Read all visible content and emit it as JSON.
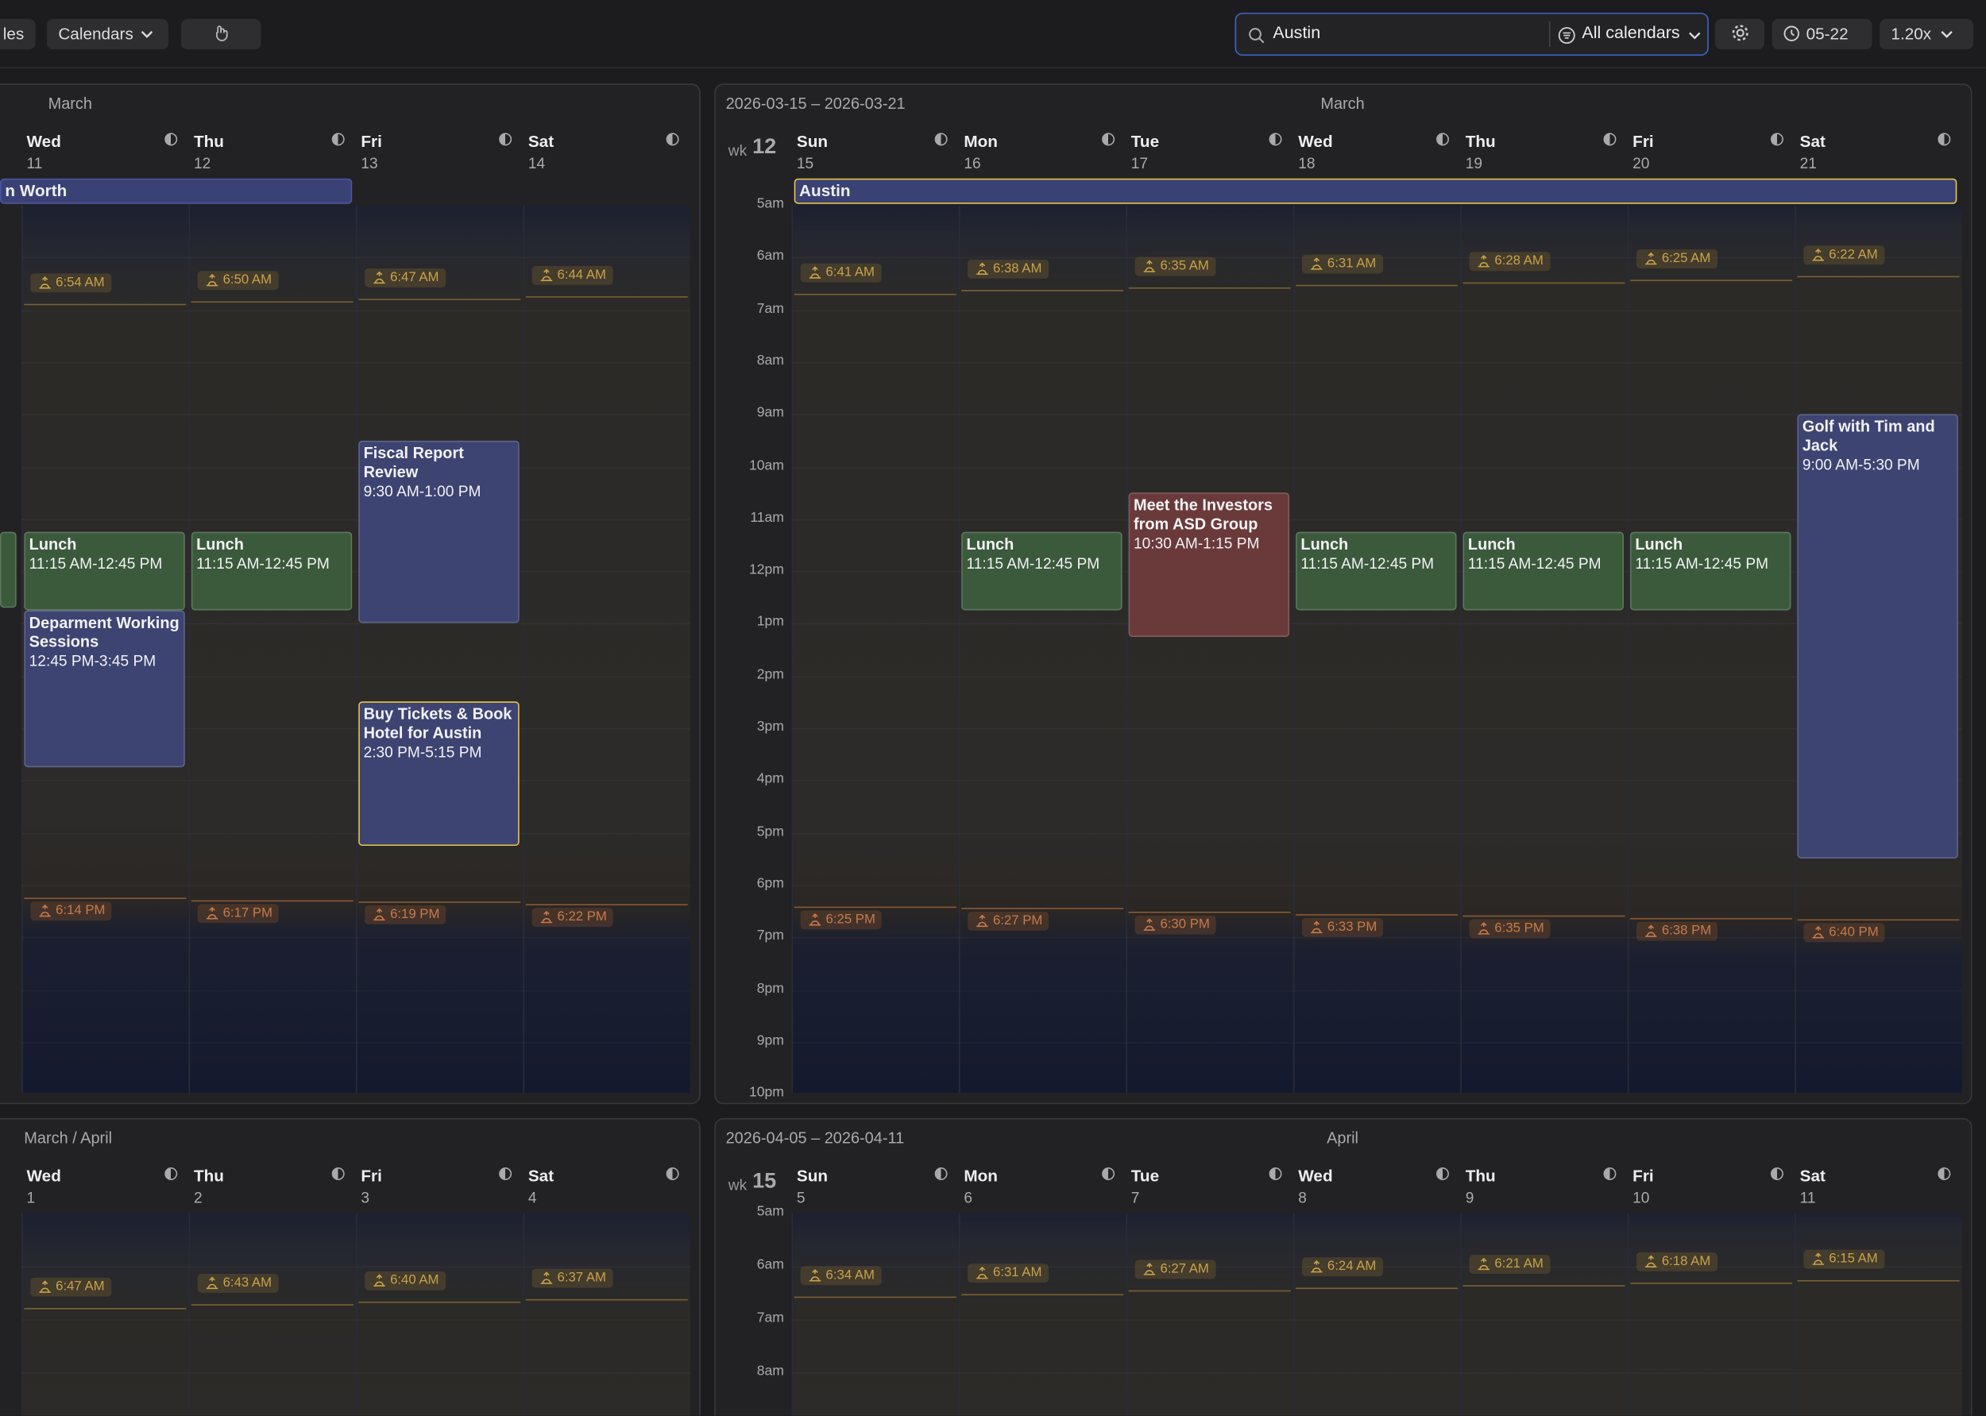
{
  "toolbar": {
    "left_button": "les",
    "calendars": "Calendars",
    "search": "Austin",
    "filter": "All calendars",
    "date": "05-22",
    "zoom": "1.20x"
  },
  "weeks": [
    {
      "month": "March",
      "all_day": {
        "title": "n Worth"
      },
      "days": [
        {
          "name": "Wed",
          "date": "11",
          "sunrise": "6:54 AM",
          "sunset": "6:14 PM",
          "events": [
            {
              "title": "Lunch",
              "time": "11:15 AM-12:45 PM",
              "color": "#3b5a3c"
            },
            {
              "title": "Deparment Working Sessions",
              "time": "12:45 PM-3:45 PM",
              "color": "#3d4472"
            }
          ]
        },
        {
          "name": "Thu",
          "date": "12",
          "sunrise": "6:50 AM",
          "sunset": "6:17 PM",
          "events": [
            {
              "title": "Lunch",
              "time": "11:15 AM-12:45 PM",
              "color": "#3b5a3c"
            }
          ]
        },
        {
          "name": "Fri",
          "date": "13",
          "sunrise": "6:47 AM",
          "sunset": "6:19 PM",
          "events": [
            {
              "title": "Fiscal Report Review",
              "time": "9:30 AM-1:00 PM",
              "color": "#3d4472"
            },
            {
              "title": "Buy Tickets & Book Hotel for Austin",
              "time": "2:30 PM-5:15 PM",
              "color": "#3d4472",
              "selected": true
            }
          ]
        },
        {
          "name": "Sat",
          "date": "14",
          "sunrise": "6:44 AM",
          "sunset": "6:22 PM",
          "events": []
        }
      ]
    },
    {
      "range": "2026-03-15 – 2026-03-21",
      "month": "March",
      "wk_label": "wk",
      "wk_number": "12",
      "hours": [
        "5am",
        "6am",
        "7am",
        "8am",
        "9am",
        "10am",
        "11am",
        "12pm",
        "1pm",
        "2pm",
        "3pm",
        "4pm",
        "5pm",
        "6pm",
        "7pm",
        "8pm",
        "9pm",
        "10pm"
      ],
      "all_day": {
        "title": "Austin",
        "selected": true
      },
      "days": [
        {
          "name": "Sun",
          "date": "15",
          "sunrise": "6:41 AM",
          "sunset": "6:25 PM",
          "events": []
        },
        {
          "name": "Mon",
          "date": "16",
          "sunrise": "6:38 AM",
          "sunset": "6:27 PM",
          "events": [
            {
              "title": "Lunch",
              "time": "11:15 AM-12:45 PM",
              "color": "#3b5a3c"
            }
          ]
        },
        {
          "name": "Tue",
          "date": "17",
          "sunrise": "6:35 AM",
          "sunset": "6:30 PM",
          "events": [
            {
              "title": "Meet the Investors from ASD Group",
              "time": "10:30 AM-1:15 PM",
              "color": "#6a3a3b"
            }
          ]
        },
        {
          "name": "Wed",
          "date": "18",
          "sunrise": "6:31 AM",
          "sunset": "6:33 PM",
          "events": [
            {
              "title": "Lunch",
              "time": "11:15 AM-12:45 PM",
              "color": "#3b5a3c"
            }
          ]
        },
        {
          "name": "Thu",
          "date": "19",
          "sunrise": "6:28 AM",
          "sunset": "6:35 PM",
          "events": [
            {
              "title": "Lunch",
              "time": "11:15 AM-12:45 PM",
              "color": "#3b5a3c"
            }
          ]
        },
        {
          "name": "Fri",
          "date": "20",
          "sunrise": "6:25 AM",
          "sunset": "6:38 PM",
          "events": [
            {
              "title": "Lunch",
              "time": "11:15 AM-12:45 PM",
              "color": "#3b5a3c"
            }
          ]
        },
        {
          "name": "Sat",
          "date": "21",
          "sunrise": "6:22 AM",
          "sunset": "6:40 PM",
          "events": [
            {
              "title": "Golf with Tim and Jack",
              "time": "9:00 AM-5:30 PM",
              "color": "#3d4472"
            }
          ]
        }
      ]
    },
    {
      "month": "March / April",
      "days": [
        {
          "name": "Wed",
          "date": "1",
          "sunrise": "6:47 AM",
          "events": []
        },
        {
          "name": "Thu",
          "date": "2",
          "sunrise": "6:43 AM",
          "events": []
        },
        {
          "name": "Fri",
          "date": "3",
          "sunrise": "6:40 AM",
          "events": []
        },
        {
          "name": "Sat",
          "date": "4",
          "sunrise": "6:37 AM",
          "events": []
        }
      ]
    },
    {
      "range": "2026-04-05 – 2026-04-11",
      "month": "April",
      "wk_label": "wk",
      "wk_number": "15",
      "hours": [
        "5am",
        "6am",
        "7am",
        "8am"
      ],
      "days": [
        {
          "name": "Sun",
          "date": "5",
          "sunrise": "6:34 AM",
          "events": []
        },
        {
          "name": "Mon",
          "date": "6",
          "sunrise": "6:31 AM",
          "events": []
        },
        {
          "name": "Tue",
          "date": "7",
          "sunrise": "6:27 AM",
          "events": []
        },
        {
          "name": "Wed",
          "date": "8",
          "sunrise": "6:24 AM",
          "events": []
        },
        {
          "name": "Thu",
          "date": "9",
          "sunrise": "6:21 AM",
          "events": []
        },
        {
          "name": "Fri",
          "date": "10",
          "sunrise": "6:18 AM",
          "events": []
        },
        {
          "name": "Sat",
          "date": "11",
          "sunrise": "6:15 AM",
          "events": []
        }
      ]
    }
  ]
}
